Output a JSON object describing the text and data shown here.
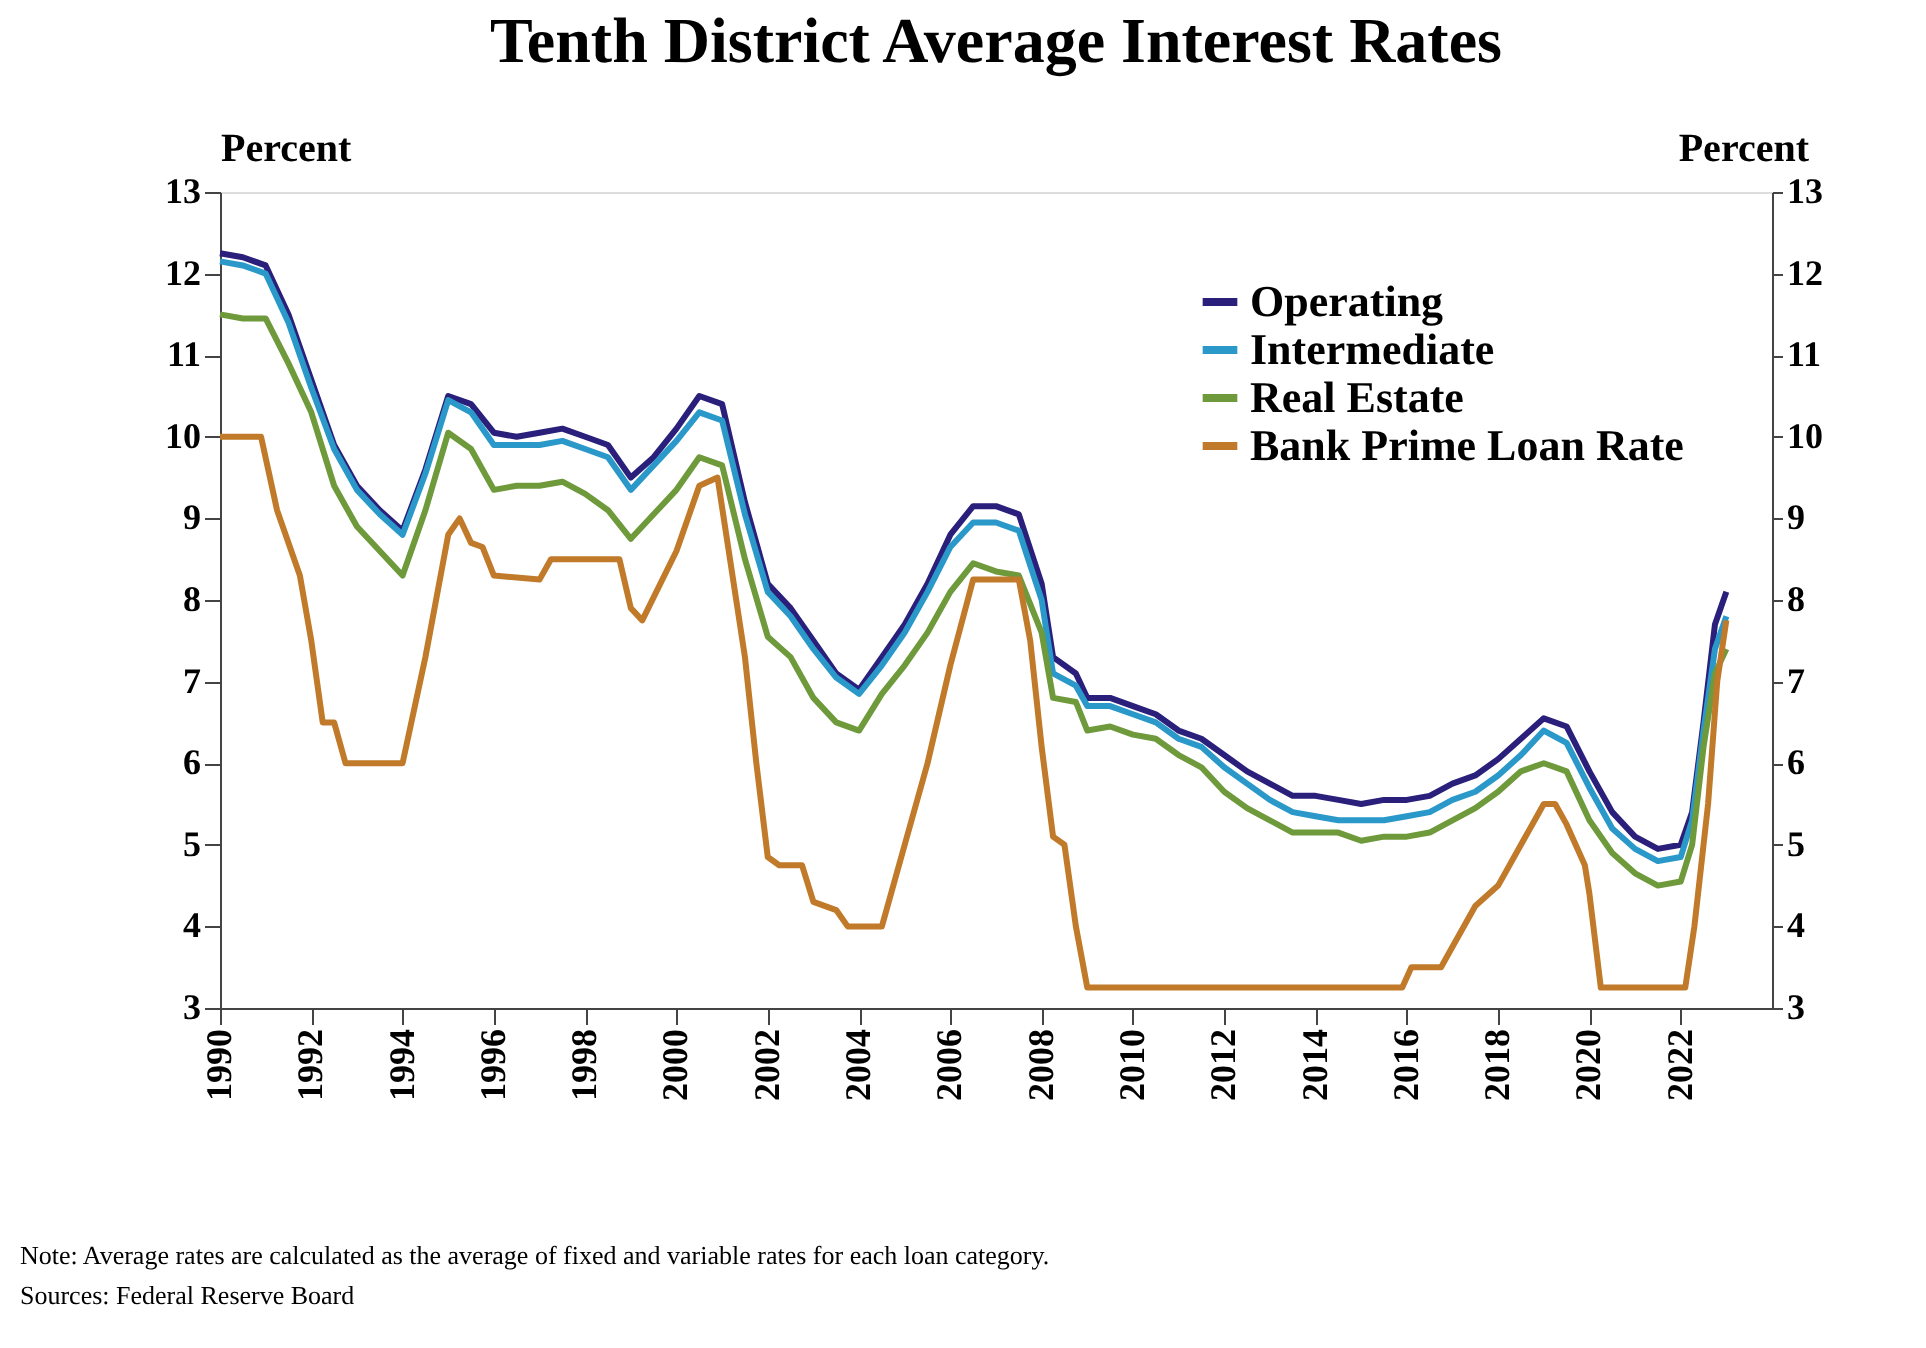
{
  "chart_data": {
    "type": "line",
    "title": "Tenth District Average Interest Rates",
    "ylabel": "Percent",
    "y2label": "Percent",
    "xlim": [
      1990,
      2024
    ],
    "xticks": [
      1990,
      1992,
      1994,
      1996,
      1998,
      2000,
      2002,
      2004,
      2006,
      2008,
      2010,
      2012,
      2014,
      2016,
      2018,
      2020,
      2022
    ],
    "ylim": [
      3,
      13
    ],
    "yticks": [
      3,
      4,
      5,
      6,
      7,
      8,
      9,
      10,
      11,
      12,
      13
    ],
    "y2lim": [
      3,
      13
    ],
    "y2ticks": [
      3,
      4,
      5,
      6,
      7,
      8,
      9,
      10,
      11,
      12,
      13
    ],
    "grid": false,
    "legend": "top right",
    "line_style": "solid",
    "marker": "none",
    "series": [
      {
        "name": "Operating",
        "color": "#2a1f7a",
        "x": [
          1990,
          1990.5,
          1991,
          1991.5,
          1992,
          1992.5,
          1993,
          1993.5,
          1994,
          1994.5,
          1995,
          1995.5,
          1996,
          1996.5,
          1997,
          1997.5,
          1998,
          1998.5,
          1999,
          1999.5,
          2000,
          2000.5,
          2001,
          2001.5,
          2002,
          2002.5,
          2003,
          2003.5,
          2004,
          2004.5,
          2005,
          2005.5,
          2006,
          2006.5,
          2007,
          2007.5,
          2008,
          2008.25,
          2008.75,
          2009,
          2009.5,
          2010,
          2010.5,
          2011,
          2011.5,
          2012,
          2012.5,
          2013,
          2013.5,
          2014,
          2014.5,
          2015,
          2015.5,
          2016,
          2016.5,
          2017,
          2017.5,
          2018,
          2018.5,
          2019,
          2019.5,
          2020,
          2020.5,
          2021,
          2021.5,
          2022,
          2022.25,
          2022.5,
          2022.75,
          2023
        ],
        "values": [
          12.25,
          12.2,
          12.1,
          11.5,
          10.7,
          9.9,
          9.4,
          9.1,
          8.85,
          9.6,
          10.5,
          10.4,
          10.05,
          10.0,
          10.05,
          10.1,
          10.0,
          9.9,
          9.5,
          9.75,
          10.1,
          10.5,
          10.4,
          9.2,
          8.2,
          7.9,
          7.5,
          7.1,
          6.9,
          7.3,
          7.7,
          8.2,
          8.8,
          9.15,
          9.15,
          9.05,
          8.2,
          7.3,
          7.1,
          6.8,
          6.8,
          6.7,
          6.6,
          6.4,
          6.3,
          6.1,
          5.9,
          5.75,
          5.6,
          5.6,
          5.55,
          5.5,
          5.55,
          5.55,
          5.6,
          5.75,
          5.85,
          6.05,
          6.3,
          6.55,
          6.45,
          5.9,
          5.4,
          5.1,
          4.95,
          5.0,
          5.4,
          6.5,
          7.7,
          8.1
        ]
      },
      {
        "name": "Intermediate",
        "color": "#2a98c8",
        "x": [
          1990,
          1990.5,
          1991,
          1991.5,
          1992,
          1992.5,
          1993,
          1993.5,
          1994,
          1994.5,
          1995,
          1995.5,
          1996,
          1996.5,
          1997,
          1997.5,
          1998,
          1998.5,
          1999,
          1999.5,
          2000,
          2000.5,
          2001,
          2001.5,
          2002,
          2002.5,
          2003,
          2003.5,
          2004,
          2004.5,
          2005,
          2005.5,
          2006,
          2006.5,
          2007,
          2007.5,
          2008,
          2008.25,
          2008.75,
          2009,
          2009.5,
          2010,
          2010.5,
          2011,
          2011.5,
          2012,
          2012.5,
          2013,
          2013.5,
          2014,
          2014.5,
          2015,
          2015.5,
          2016,
          2016.5,
          2017,
          2017.5,
          2018,
          2018.5,
          2019,
          2019.5,
          2020,
          2020.5,
          2021,
          2021.5,
          2022,
          2022.25,
          2022.5,
          2022.75,
          2023
        ],
        "values": [
          12.15,
          12.1,
          12.0,
          11.4,
          10.6,
          9.85,
          9.35,
          9.05,
          8.8,
          9.55,
          10.45,
          10.3,
          9.9,
          9.9,
          9.9,
          9.95,
          9.85,
          9.75,
          9.35,
          9.65,
          9.95,
          10.3,
          10.2,
          9.05,
          8.1,
          7.8,
          7.4,
          7.05,
          6.85,
          7.2,
          7.6,
          8.1,
          8.65,
          8.95,
          8.95,
          8.85,
          8.0,
          7.1,
          6.95,
          6.7,
          6.7,
          6.6,
          6.5,
          6.3,
          6.2,
          5.95,
          5.75,
          5.55,
          5.4,
          5.35,
          5.3,
          5.3,
          5.3,
          5.35,
          5.4,
          5.55,
          5.65,
          5.85,
          6.1,
          6.4,
          6.25,
          5.7,
          5.2,
          4.95,
          4.8,
          4.85,
          5.3,
          6.4,
          7.4,
          7.8
        ]
      },
      {
        "name": "Real Estate",
        "color": "#6e9a3c",
        "x": [
          1990,
          1990.5,
          1991,
          1991.5,
          1992,
          1992.5,
          1993,
          1993.5,
          1994,
          1994.5,
          1995,
          1995.5,
          1996,
          1996.5,
          1997,
          1997.5,
          1998,
          1998.5,
          1999,
          1999.5,
          2000,
          2000.5,
          2001,
          2001.5,
          2002,
          2002.5,
          2003,
          2003.5,
          2004,
          2004.5,
          2005,
          2005.5,
          2006,
          2006.5,
          2007,
          2007.5,
          2008,
          2008.25,
          2008.75,
          2009,
          2009.5,
          2010,
          2010.5,
          2011,
          2011.5,
          2012,
          2012.5,
          2013,
          2013.5,
          2014,
          2014.5,
          2015,
          2015.5,
          2016,
          2016.5,
          2017,
          2017.5,
          2018,
          2018.5,
          2019,
          2019.5,
          2020,
          2020.5,
          2021,
          2021.5,
          2022,
          2022.25,
          2022.5,
          2022.75,
          2023
        ],
        "values": [
          11.5,
          11.45,
          11.45,
          10.9,
          10.3,
          9.4,
          8.9,
          8.6,
          8.3,
          9.1,
          10.05,
          9.85,
          9.35,
          9.4,
          9.4,
          9.45,
          9.3,
          9.1,
          8.75,
          9.05,
          9.35,
          9.75,
          9.65,
          8.5,
          7.55,
          7.3,
          6.8,
          6.5,
          6.4,
          6.85,
          7.2,
          7.6,
          8.1,
          8.45,
          8.35,
          8.3,
          7.6,
          6.8,
          6.75,
          6.4,
          6.45,
          6.35,
          6.3,
          6.1,
          5.95,
          5.65,
          5.45,
          5.3,
          5.15,
          5.15,
          5.15,
          5.05,
          5.1,
          5.1,
          5.15,
          5.3,
          5.45,
          5.65,
          5.9,
          6.0,
          5.9,
          5.3,
          4.9,
          4.65,
          4.5,
          4.55,
          5.0,
          6.2,
          7.1,
          7.4
        ]
      },
      {
        "name": "Bank Prime Loan Rate",
        "color": "#c07a2a",
        "x": [
          1990,
          1990.9,
          1991.25,
          1991.75,
          1992,
          1992.25,
          1992.5,
          1992.75,
          1994,
          1994.5,
          1995,
          1995.25,
          1995.5,
          1995.75,
          1996,
          1997,
          1997.25,
          1998.75,
          1999,
          1999.25,
          2000,
          2000.5,
          2000.9,
          2001.5,
          2001.75,
          2002,
          2002.25,
          2002.75,
          2003,
          2003.5,
          2003.75,
          2004.5,
          2005,
          2005.5,
          2006,
          2006.5,
          2007.5,
          2007.75,
          2008,
          2008.25,
          2008.5,
          2008.75,
          2009,
          2015.9,
          2016.1,
          2016.75,
          2017,
          2017.5,
          2018,
          2018.5,
          2019,
          2019.25,
          2019.5,
          2019.9,
          2020,
          2020.25,
          2022.1,
          2022.3,
          2022.6,
          2022.8,
          2023
        ],
        "values": [
          10.0,
          10.0,
          9.1,
          8.3,
          7.5,
          6.5,
          6.5,
          6.0,
          6.0,
          7.3,
          8.8,
          9.0,
          8.7,
          8.65,
          8.3,
          8.25,
          8.5,
          8.5,
          7.9,
          7.75,
          8.6,
          9.4,
          9.5,
          7.3,
          6.0,
          4.85,
          4.75,
          4.75,
          4.3,
          4.2,
          4.0,
          4.0,
          5.0,
          6.0,
          7.2,
          8.25,
          8.25,
          7.5,
          6.2,
          5.1,
          5.0,
          4.0,
          3.25,
          3.25,
          3.5,
          3.5,
          3.75,
          4.25,
          4.5,
          5.0,
          5.5,
          5.5,
          5.25,
          4.75,
          4.4,
          3.25,
          3.25,
          4.0,
          5.5,
          7.0,
          7.75
        ]
      }
    ],
    "annotations": [
      "Note: Average rates are calculated as the average of fixed and variable rates for each loan category.",
      "Sources: Federal Reserve Board"
    ]
  }
}
